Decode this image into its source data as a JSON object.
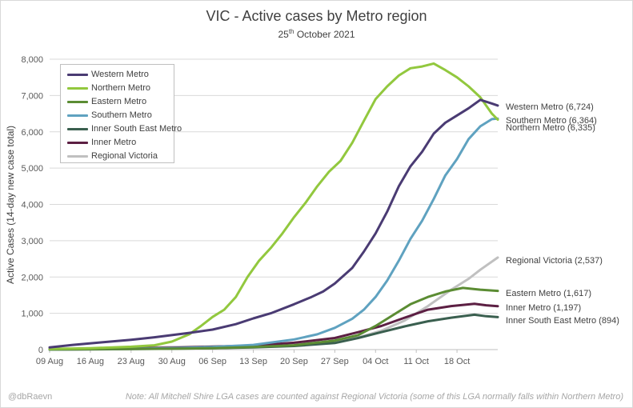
{
  "title": "VIC - Active cases by Metro region",
  "subtitle_main": "25",
  "subtitle_sup": "th",
  "subtitle_rest": " October 2021",
  "credit": "@dbRaevn",
  "note": "Note: All Mitchell Shire LGA cases are counted against Regional Victoria (some of this LGA normally falls within Northern Metro)",
  "chart_data": {
    "type": "line",
    "title": "VIC - Active cases by Metro region",
    "subtitle": "25th October 2021",
    "xlabel": "",
    "ylabel": "Active Cases (14-day new case total)",
    "ylim": [
      0,
      8000
    ],
    "yticks": [
      "0",
      "1,000",
      "2,000",
      "3,000",
      "4,000",
      "5,000",
      "6,000",
      "7,000",
      "8,000"
    ],
    "x_start": "09 Aug",
    "x_end": "25 Oct",
    "xticks": [
      "09 Aug",
      "16 Aug",
      "23 Aug",
      "30 Aug",
      "06 Sep",
      "13 Sep",
      "20 Sep",
      "27 Sep",
      "04 Oct",
      "11 Oct",
      "18 Oct"
    ],
    "grid": "horizontal",
    "legend": "top-left",
    "series": [
      {
        "name": "Western Metro",
        "color": "#4a3b73",
        "end_label": "Western Metro (6,724)",
        "points": [
          [
            "09 Aug",
            60
          ],
          [
            "13 Aug",
            130
          ],
          [
            "18 Aug",
            200
          ],
          [
            "23 Aug",
            270
          ],
          [
            "27 Aug",
            340
          ],
          [
            "30 Aug",
            400
          ],
          [
            "02 Sep",
            460
          ],
          [
            "06 Sep",
            550
          ],
          [
            "10 Sep",
            700
          ],
          [
            "13 Sep",
            860
          ],
          [
            "16 Sep",
            1000
          ],
          [
            "20 Sep",
            1250
          ],
          [
            "23 Sep",
            1450
          ],
          [
            "25 Sep",
            1600
          ],
          [
            "27 Sep",
            1820
          ],
          [
            "30 Sep",
            2250
          ],
          [
            "02 Oct",
            2700
          ],
          [
            "04 Oct",
            3200
          ],
          [
            "06 Oct",
            3800
          ],
          [
            "08 Oct",
            4500
          ],
          [
            "10 Oct",
            5050
          ],
          [
            "12 Oct",
            5450
          ],
          [
            "14 Oct",
            5950
          ],
          [
            "16 Oct",
            6250
          ],
          [
            "18 Oct",
            6450
          ],
          [
            "20 Oct",
            6650
          ],
          [
            "22 Oct",
            6880
          ],
          [
            "24 Oct",
            6780
          ],
          [
            "25 Oct",
            6724
          ]
        ]
      },
      {
        "name": "Northern Metro",
        "color": "#92c83e",
        "end_label": "Northern Metro (6,335)",
        "points": [
          [
            "09 Aug",
            20
          ],
          [
            "16 Aug",
            40
          ],
          [
            "23 Aug",
            80
          ],
          [
            "27 Aug",
            120
          ],
          [
            "30 Aug",
            220
          ],
          [
            "02 Sep",
            420
          ],
          [
            "04 Sep",
            650
          ],
          [
            "06 Sep",
            900
          ],
          [
            "08 Sep",
            1100
          ],
          [
            "10 Sep",
            1450
          ],
          [
            "12 Sep",
            2000
          ],
          [
            "14 Sep",
            2450
          ],
          [
            "16 Sep",
            2800
          ],
          [
            "18 Sep",
            3200
          ],
          [
            "20 Sep",
            3650
          ],
          [
            "22 Sep",
            4050
          ],
          [
            "24 Sep",
            4500
          ],
          [
            "26 Sep",
            4900
          ],
          [
            "28 Sep",
            5200
          ],
          [
            "30 Sep",
            5700
          ],
          [
            "02 Oct",
            6300
          ],
          [
            "04 Oct",
            6900
          ],
          [
            "06 Oct",
            7250
          ],
          [
            "08 Oct",
            7550
          ],
          [
            "10 Oct",
            7750
          ],
          [
            "12 Oct",
            7800
          ],
          [
            "14 Oct",
            7880
          ],
          [
            "16 Oct",
            7700
          ],
          [
            "18 Oct",
            7500
          ],
          [
            "20 Oct",
            7250
          ],
          [
            "22 Oct",
            6950
          ],
          [
            "24 Oct",
            6500
          ],
          [
            "25 Oct",
            6335
          ]
        ]
      },
      {
        "name": "Eastern Metro",
        "color": "#5b8c33",
        "end_label": "Eastern Metro (1,617)",
        "points": [
          [
            "09 Aug",
            5
          ],
          [
            "20 Aug",
            15
          ],
          [
            "30 Aug",
            25
          ],
          [
            "06 Sep",
            40
          ],
          [
            "13 Sep",
            70
          ],
          [
            "20 Sep",
            120
          ],
          [
            "27 Sep",
            250
          ],
          [
            "01 Oct",
            400
          ],
          [
            "04 Oct",
            650
          ],
          [
            "07 Oct",
            950
          ],
          [
            "10 Oct",
            1250
          ],
          [
            "13 Oct",
            1450
          ],
          [
            "16 Oct",
            1600
          ],
          [
            "19 Oct",
            1700
          ],
          [
            "22 Oct",
            1650
          ],
          [
            "25 Oct",
            1617
          ]
        ]
      },
      {
        "name": "Southern Metro",
        "color": "#5fa2c0",
        "end_label": "Southern Metro (6,364)",
        "points": [
          [
            "09 Aug",
            5
          ],
          [
            "20 Aug",
            20
          ],
          [
            "30 Aug",
            40
          ],
          [
            "06 Sep",
            70
          ],
          [
            "13 Sep",
            130
          ],
          [
            "20 Sep",
            280
          ],
          [
            "24 Sep",
            420
          ],
          [
            "27 Sep",
            600
          ],
          [
            "30 Sep",
            850
          ],
          [
            "02 Oct",
            1100
          ],
          [
            "04 Oct",
            1450
          ],
          [
            "06 Oct",
            1900
          ],
          [
            "08 Oct",
            2450
          ],
          [
            "10 Oct",
            3050
          ],
          [
            "12 Oct",
            3550
          ],
          [
            "14 Oct",
            4150
          ],
          [
            "16 Oct",
            4800
          ],
          [
            "18 Oct",
            5250
          ],
          [
            "20 Oct",
            5800
          ],
          [
            "22 Oct",
            6150
          ],
          [
            "24 Oct",
            6350
          ],
          [
            "25 Oct",
            6364
          ]
        ]
      },
      {
        "name": "Inner South East Metro",
        "color": "#3a5f4f",
        "end_label": "Inner South East Metro (894)",
        "points": [
          [
            "09 Aug",
            0
          ],
          [
            "20 Aug",
            10
          ],
          [
            "30 Aug",
            25
          ],
          [
            "06 Sep",
            40
          ],
          [
            "13 Sep",
            60
          ],
          [
            "20 Sep",
            100
          ],
          [
            "27 Sep",
            180
          ],
          [
            "01 Oct",
            320
          ],
          [
            "05 Oct",
            480
          ],
          [
            "09 Oct",
            640
          ],
          [
            "13 Oct",
            780
          ],
          [
            "17 Oct",
            880
          ],
          [
            "21 Oct",
            960
          ],
          [
            "23 Oct",
            920
          ],
          [
            "25 Oct",
            894
          ]
        ]
      },
      {
        "name": "Inner Metro",
        "color": "#5c1f43",
        "end_label": "Inner Metro (1,197)",
        "points": [
          [
            "09 Aug",
            10
          ],
          [
            "20 Aug",
            30
          ],
          [
            "30 Aug",
            50
          ],
          [
            "06 Sep",
            80
          ],
          [
            "13 Sep",
            110
          ],
          [
            "20 Sep",
            190
          ],
          [
            "27 Sep",
            320
          ],
          [
            "01 Oct",
            480
          ],
          [
            "05 Oct",
            650
          ],
          [
            "09 Oct",
            880
          ],
          [
            "13 Oct",
            1100
          ],
          [
            "17 Oct",
            1200
          ],
          [
            "21 Oct",
            1260
          ],
          [
            "23 Oct",
            1220
          ],
          [
            "25 Oct",
            1197
          ]
        ]
      },
      {
        "name": "Regional Victoria",
        "color": "#c0c0c0",
        "end_label": "Regional Victoria (2,537)",
        "points": [
          [
            "09 Aug",
            10
          ],
          [
            "20 Aug",
            40
          ],
          [
            "30 Aug",
            70
          ],
          [
            "06 Sep",
            90
          ],
          [
            "13 Sep",
            110
          ],
          [
            "20 Sep",
            150
          ],
          [
            "27 Sep",
            220
          ],
          [
            "01 Oct",
            330
          ],
          [
            "05 Oct",
            520
          ],
          [
            "09 Oct",
            800
          ],
          [
            "13 Oct",
            1200
          ],
          [
            "17 Oct",
            1650
          ],
          [
            "20 Oct",
            1950
          ],
          [
            "22 Oct",
            2200
          ],
          [
            "25 Oct",
            2537
          ]
        ]
      }
    ]
  }
}
